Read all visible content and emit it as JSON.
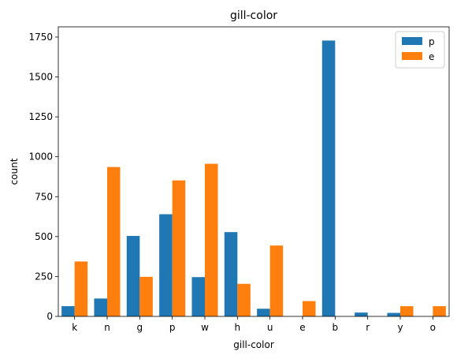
{
  "chart_data": {
    "type": "bar",
    "title": "gill-color",
    "xlabel": "gill-color",
    "ylabel": "count",
    "categories": [
      "k",
      "n",
      "g",
      "p",
      "w",
      "h",
      "u",
      "e",
      "b",
      "r",
      "y",
      "o"
    ],
    "series": [
      {
        "name": "p",
        "color": "#1f77b4",
        "values": [
          64,
          112,
          504,
          640,
          246,
          528,
          48,
          0,
          1728,
          24,
          22,
          0
        ]
      },
      {
        "name": "e",
        "color": "#ff7f0e",
        "values": [
          344,
          936,
          248,
          852,
          956,
          204,
          444,
          96,
          0,
          0,
          64,
          64
        ]
      }
    ],
    "ylim": [
      0,
      1814
    ],
    "yticks": [
      0,
      250,
      500,
      750,
      1000,
      1250,
      1500,
      1750
    ],
    "grid": false,
    "legend_position": "top-right"
  }
}
